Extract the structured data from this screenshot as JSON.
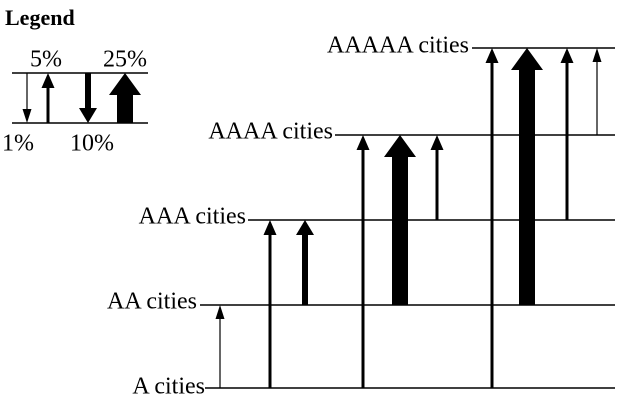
{
  "legend": {
    "title": "Legend",
    "labels": [
      "5%",
      "25%",
      "1%",
      "10%"
    ]
  },
  "levels": [
    "A cities",
    "AA cities",
    "AAA cities",
    "AAAA cities",
    "AAAAA cities"
  ]
}
